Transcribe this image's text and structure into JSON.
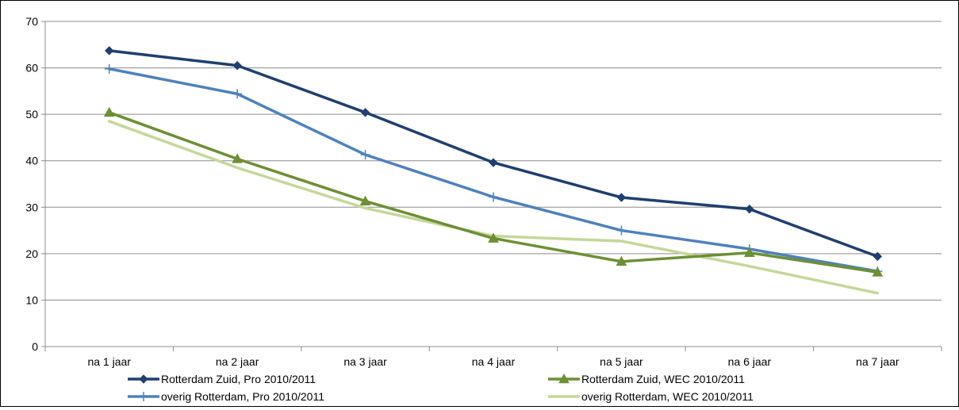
{
  "chart_data": {
    "type": "line",
    "title": "",
    "xlabel": "",
    "ylabel": "",
    "categories": [
      "na 1 jaar",
      "na 2 jaar",
      "na 3 jaar",
      "na 4 jaar",
      "na 5 jaar",
      "na 6 jaar",
      "na 7 jaar"
    ],
    "ylim": [
      0,
      70
    ],
    "yticks": [
      0,
      10,
      20,
      30,
      40,
      50,
      60,
      70
    ],
    "ytick_labels": [
      "0",
      "10",
      "20",
      "30",
      "40",
      "50",
      "60",
      "70"
    ],
    "grid": "horizontal",
    "legend_position": "bottom",
    "series": [
      {
        "name": "Rotterdam Zuid, Pro 2010/2011",
        "values": [
          63.7,
          60.5,
          50.4,
          39.6,
          32.1,
          29.6,
          19.4
        ],
        "color": "#1F3F6E",
        "marker": "diamond"
      },
      {
        "name": "Rotterdam Zuid, WEC 2010/2011",
        "values": [
          50.4,
          40.4,
          31.3,
          23.3,
          18.3,
          20.2,
          16.0
        ],
        "color": "#6D8F35",
        "marker": "triangle"
      },
      {
        "name": "overig Rotterdam, Pro 2010/2011",
        "values": [
          59.8,
          54.4,
          41.3,
          32.2,
          25.0,
          21.0,
          16.2
        ],
        "color": "#4F81BD",
        "marker": "plus"
      },
      {
        "name": "overig Rotterdam, WEC 2010/2011",
        "values": [
          48.5,
          38.5,
          29.8,
          23.8,
          22.7,
          17.3,
          11.5
        ],
        "color": "#C4D79B",
        "marker": "none"
      }
    ]
  }
}
